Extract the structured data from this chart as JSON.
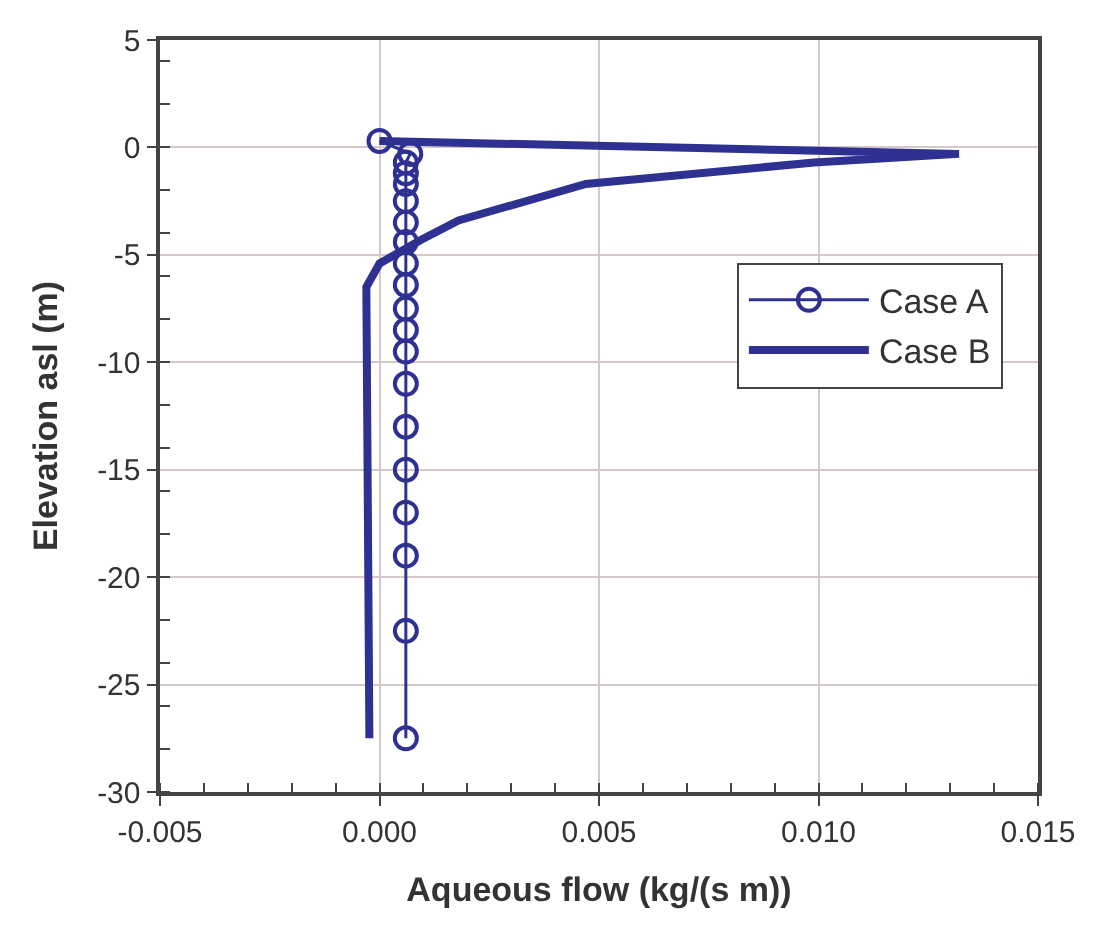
{
  "chart_data": {
    "type": "line",
    "xlabel": "Aqueous flow (kg/(s m))",
    "ylabel": "Elevation asl (m)",
    "xlim": [
      -0.005,
      0.015
    ],
    "xticks": [
      {
        "value": -0.005,
        "label": "-0.005"
      },
      {
        "value": 0,
        "label": "0.000"
      },
      {
        "value": 0.005,
        "label": "0.005"
      },
      {
        "value": 0.01,
        "label": "0.010"
      },
      {
        "value": 0.015,
        "label": "0.015"
      }
    ],
    "ylim": [
      -30,
      5
    ],
    "yticks": [
      -30,
      -25,
      -20,
      -15,
      -10,
      -5,
      0,
      5
    ],
    "grid": true,
    "legend": "right",
    "series": [
      {
        "name": "Case A",
        "color": "#2e3192",
        "marker": "circle",
        "x": [
          0.0,
          0.0007,
          0.0006,
          0.0006,
          0.0006,
          0.0006,
          0.0006,
          0.0006,
          0.0006,
          0.0006,
          0.0006,
          0.0006,
          0.0006,
          0.0006,
          0.0006,
          0.0006,
          0.0006,
          0.0006,
          0.0006,
          0.0006
        ],
        "values": [
          0.3,
          -0.3,
          -0.7,
          -1.2,
          -1.7,
          -2.5,
          -3.5,
          -4.4,
          -5.4,
          -6.4,
          -7.5,
          -8.5,
          -9.5,
          -11,
          -13,
          -15,
          -17,
          -19,
          -22.5,
          -27.5
        ]
      },
      {
        "name": "Case B",
        "color": "#2e3192",
        "marker": "none",
        "x": [
          0.0,
          0.0132,
          0.0099,
          0.0047,
          0.0018,
          0.00095,
          0.0,
          -0.0003,
          -0.00023
        ],
        "values": [
          0.3,
          -0.3,
          -0.7,
          -1.7,
          -3.4,
          -4.3,
          -5.4,
          -6.5,
          -27.5
        ]
      }
    ]
  }
}
